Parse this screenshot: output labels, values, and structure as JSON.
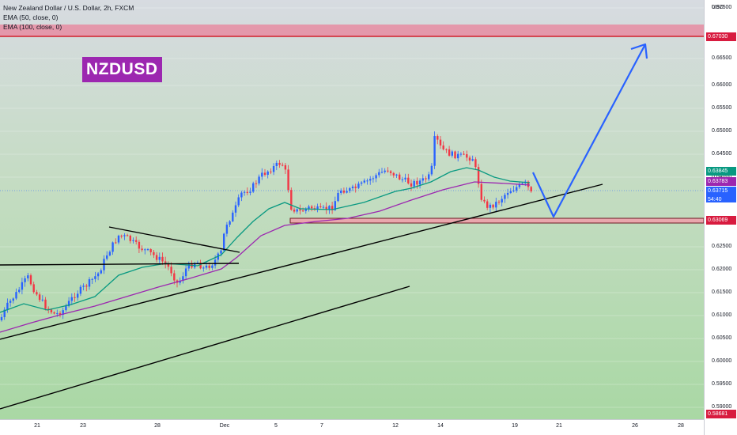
{
  "header": {
    "symbol_line": "New Zealand Dollar / U.S. Dollar, 2h, FXCM",
    "ema50": "EMA (50, close, 0)",
    "ema100": "EMA (100, close, 0)"
  },
  "badge": "NZDUSD",
  "axis": {
    "currency": "USD",
    "y_ticks": [
      "0.67500",
      "0.66500",
      "0.66000",
      "0.65500",
      "0.65000",
      "0.64500",
      "0.64000",
      "0.62500",
      "0.62000",
      "0.61500",
      "0.61000",
      "0.60500",
      "0.60000",
      "0.59500",
      "0.59000"
    ],
    "x_ticks": [
      "21",
      "23",
      "28",
      "Dec",
      "5",
      "7",
      "12",
      "14",
      "19",
      "21",
      "26",
      "28"
    ]
  },
  "price_tags": {
    "target": "0.67030",
    "ema50": "0.63845",
    "ema100": "0.63783",
    "last": "0.63715",
    "countdown": "54:40",
    "support": "0.63069",
    "bottom": "0.58681"
  },
  "colors": {
    "up": "#2962ff",
    "down": "#f23645",
    "ema50": "#089981",
    "ema100": "#9c27b0",
    "forecast": "#2962ff",
    "zone": "#f0a8b0",
    "zone_line": "#e53935",
    "badge": "#9c27b0"
  },
  "chart_data": {
    "type": "candlestick",
    "symbol": "NZDUSD",
    "timeframe": "2h",
    "ylim": [
      0.5868,
      0.677
    ],
    "x_ticks": [
      "21",
      "23",
      "28",
      "Dec",
      "5",
      "7",
      "12",
      "14",
      "19",
      "21",
      "26",
      "28"
    ],
    "close_path": [
      [
        "21 Nov",
        0.61
      ],
      [
        "22 Nov",
        0.6185
      ],
      [
        "23 Nov",
        0.614
      ],
      [
        "24 Nov",
        0.618
      ],
      [
        "27 Nov",
        0.6255
      ],
      [
        "28 Nov",
        0.6215
      ],
      [
        "29 Nov",
        0.621
      ],
      [
        "30 Nov",
        0.623
      ],
      [
        "1 Dec",
        0.633
      ],
      [
        "4 Dec",
        0.6425
      ],
      [
        "5 Dec",
        0.642
      ],
      [
        "6 Dec",
        0.6315
      ],
      [
        "7 Dec",
        0.6325
      ],
      [
        "8 Dec",
        0.6375
      ],
      [
        "11 Dec",
        0.6385
      ],
      [
        "12 Dec",
        0.6395
      ],
      [
        "13 Dec",
        0.6405
      ],
      [
        "14 Dec",
        0.648
      ],
      [
        "15 Dec",
        0.6455
      ],
      [
        "18 Dec",
        0.633
      ],
      [
        "19 Dec",
        0.638
      ],
      [
        "20 Dec",
        0.6372
      ]
    ],
    "ema50_last": 0.63845,
    "ema100_last": 0.63783,
    "last_price": 0.63715,
    "target_level": 0.6703,
    "support_level": 0.63069,
    "forecast_path": [
      [
        "20 Dec",
        0.6398
      ],
      [
        "21 Dec",
        0.6308
      ],
      [
        "27 Dec",
        0.6692
      ]
    ]
  }
}
